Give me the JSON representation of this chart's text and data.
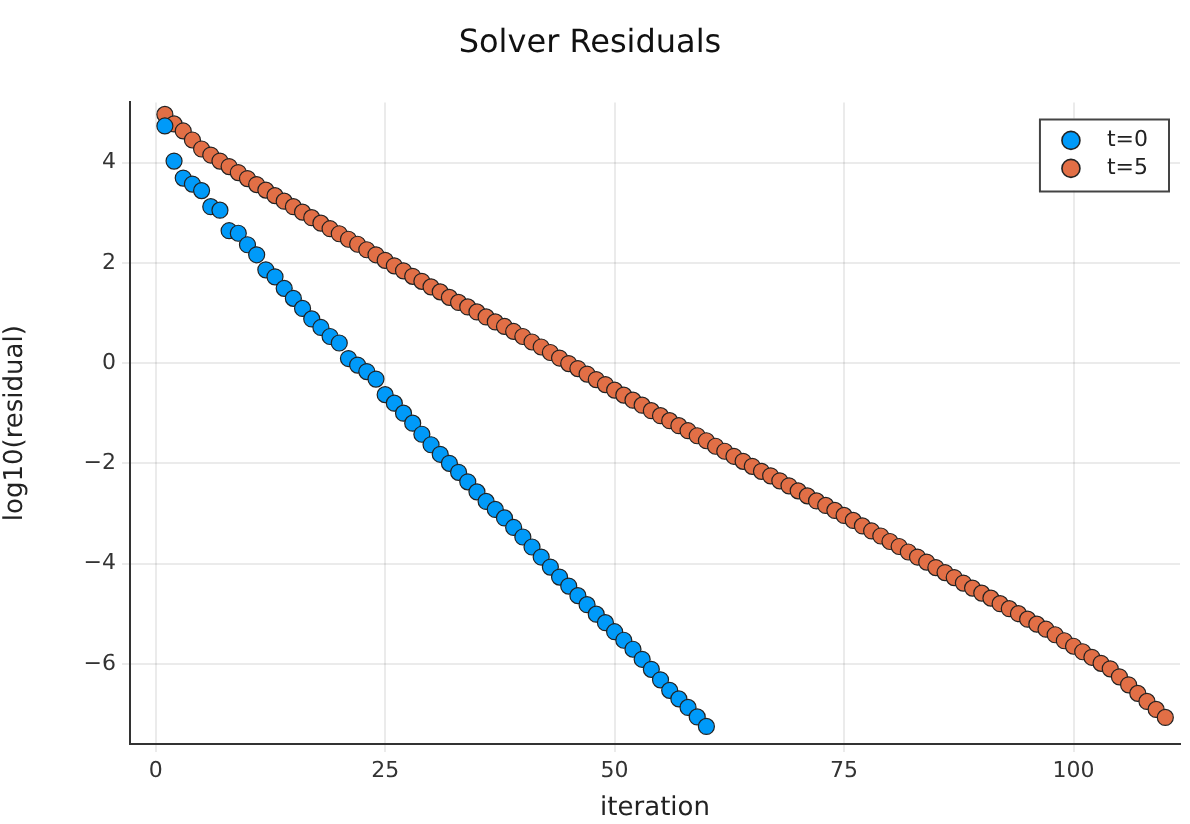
{
  "chart_data": {
    "type": "scatter",
    "title": "Solver Residuals",
    "xlabel": "iteration",
    "ylabel": "log10(residual)",
    "xlim": [
      -2.8,
      111.6
    ],
    "xticks": [
      0,
      25,
      50,
      75,
      100
    ],
    "ylim": [
      -7.6,
      5.2
    ],
    "yticks": [
      {
        "value": -6,
        "label": "−6"
      },
      {
        "value": -4,
        "label": "−4"
      },
      {
        "value": -2,
        "label": "−2"
      },
      0,
      2,
      4
    ],
    "grid": true,
    "legend": "top right",
    "marker": "circle",
    "series": [
      {
        "name": "t=0",
        "color": "#009af9",
        "x": [
          1,
          2,
          3,
          4,
          5,
          6,
          7,
          8,
          9,
          10,
          11,
          12,
          13,
          14,
          15,
          16,
          17,
          18,
          19,
          20,
          21,
          22,
          23,
          24,
          25,
          26,
          27,
          28,
          29,
          30,
          31,
          32,
          33,
          34,
          35,
          36,
          37,
          38,
          39,
          40,
          41,
          42,
          43,
          44,
          45,
          46,
          47,
          48,
          49,
          50,
          51,
          52,
          53,
          54,
          55,
          56,
          57,
          58,
          59,
          60
        ],
        "values": [
          4.73,
          4.03,
          3.69,
          3.57,
          3.44,
          3.12,
          3.05,
          2.64,
          2.59,
          2.36,
          2.16,
          1.86,
          1.72,
          1.49,
          1.29,
          1.09,
          0.88,
          0.71,
          0.53,
          0.4,
          0.09,
          -0.04,
          -0.17,
          -0.32,
          -0.63,
          -0.8,
          -1.0,
          -1.2,
          -1.42,
          -1.63,
          -1.82,
          -2.0,
          -2.18,
          -2.37,
          -2.57,
          -2.76,
          -2.92,
          -3.09,
          -3.28,
          -3.47,
          -3.67,
          -3.87,
          -4.07,
          -4.27,
          -4.45,
          -4.64,
          -4.82,
          -5.01,
          -5.18,
          -5.36,
          -5.53,
          -5.71,
          -5.91,
          -6.11,
          -6.32,
          -6.53,
          -6.7,
          -6.87,
          -7.06,
          -7.25
        ]
      },
      {
        "name": "t=5",
        "color": "#e26f46",
        "x": [
          1,
          2,
          3,
          4,
          5,
          6,
          7,
          8,
          9,
          10,
          11,
          12,
          13,
          14,
          15,
          16,
          17,
          18,
          19,
          20,
          21,
          22,
          23,
          24,
          25,
          26,
          27,
          28,
          29,
          30,
          31,
          32,
          33,
          34,
          35,
          36,
          37,
          38,
          39,
          40,
          41,
          42,
          43,
          44,
          45,
          46,
          47,
          48,
          49,
          50,
          51,
          52,
          53,
          54,
          55,
          56,
          57,
          58,
          59,
          60,
          61,
          62,
          63,
          64,
          65,
          66,
          67,
          68,
          69,
          70,
          71,
          72,
          73,
          74,
          75,
          76,
          77,
          78,
          79,
          80,
          81,
          82,
          83,
          84,
          85,
          86,
          87,
          88,
          89,
          90,
          91,
          92,
          93,
          94,
          95,
          96,
          97,
          98,
          99,
          100,
          101,
          102,
          103,
          104,
          105,
          106,
          107,
          108,
          109,
          110
        ],
        "values": [
          4.96,
          4.77,
          4.63,
          4.45,
          4.27,
          4.15,
          4.03,
          3.92,
          3.8,
          3.68,
          3.56,
          3.45,
          3.34,
          3.23,
          3.12,
          3.01,
          2.9,
          2.79,
          2.68,
          2.58,
          2.47,
          2.37,
          2.26,
          2.16,
          2.05,
          1.94,
          1.84,
          1.73,
          1.63,
          1.52,
          1.42,
          1.31,
          1.21,
          1.12,
          1.02,
          0.92,
          0.82,
          0.73,
          0.63,
          0.53,
          0.42,
          0.32,
          0.21,
          0.1,
          -0.01,
          -0.11,
          -0.22,
          -0.33,
          -0.43,
          -0.54,
          -0.64,
          -0.74,
          -0.84,
          -0.95,
          -1.05,
          -1.15,
          -1.25,
          -1.35,
          -1.45,
          -1.55,
          -1.66,
          -1.76,
          -1.86,
          -1.96,
          -2.06,
          -2.16,
          -2.25,
          -2.35,
          -2.45,
          -2.55,
          -2.65,
          -2.75,
          -2.84,
          -2.94,
          -3.04,
          -3.14,
          -3.25,
          -3.35,
          -3.45,
          -3.56,
          -3.66,
          -3.77,
          -3.87,
          -3.97,
          -4.08,
          -4.18,
          -4.28,
          -4.39,
          -4.49,
          -4.59,
          -4.69,
          -4.8,
          -4.9,
          -5.0,
          -5.11,
          -5.21,
          -5.31,
          -5.42,
          -5.54,
          -5.65,
          -5.76,
          -5.87,
          -5.99,
          -6.1,
          -6.26,
          -6.42,
          -6.59,
          -6.75,
          -6.91,
          -7.07
        ]
      }
    ]
  }
}
